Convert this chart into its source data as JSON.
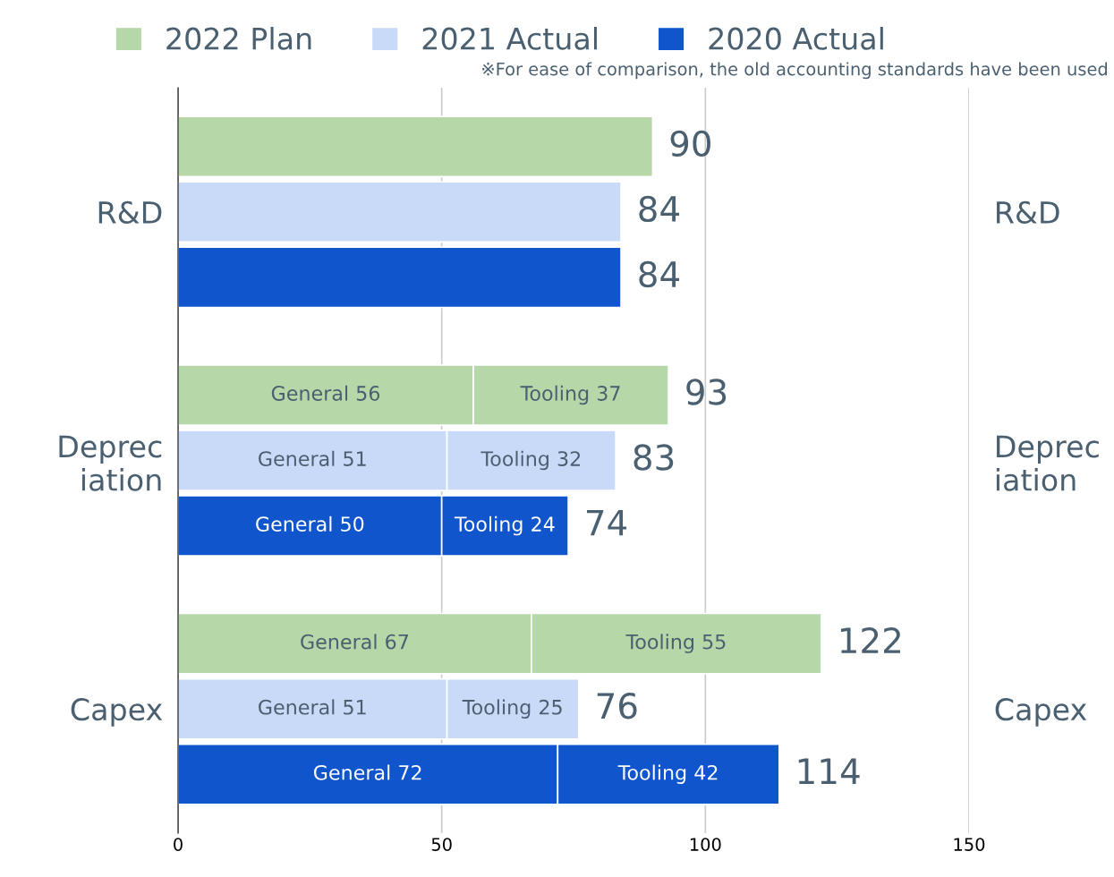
{
  "chart_data": {
    "type": "bar",
    "orientation": "horizontal",
    "stacked": true,
    "categories": [
      null,
      "R&D",
      null,
      null,
      "Deprec\niation",
      null,
      null,
      "Capex",
      null
    ],
    "series": [
      {
        "name": "2022 Plan",
        "color": "#b6d7a8",
        "values": [
          90,
          null,
          null,
          56,
          null,
          null,
          67,
          null,
          null
        ],
        "value_labels": [
          null,
          null,
          null,
          "General 56",
          null,
          null,
          "General 67",
          null,
          null
        ]
      },
      {
        "color": "#b6d7a8",
        "values": [
          null,
          null,
          null,
          37,
          null,
          null,
          55,
          null,
          null
        ],
        "value_labels": [
          null,
          null,
          null,
          "Tooling 37",
          null,
          null,
          "Tooling 55",
          null,
          null
        ]
      },
      {
        "name": "2021 Actual",
        "color": "#c9daf8",
        "values": [
          null,
          84,
          null,
          null,
          51,
          null,
          null,
          51,
          null
        ],
        "value_labels": [
          null,
          null,
          null,
          null,
          "General 51",
          null,
          null,
          "General 51",
          null
        ]
      },
      {
        "color": "#c9daf8",
        "values": [
          null,
          null,
          null,
          null,
          32,
          null,
          null,
          25,
          null
        ],
        "value_labels": [
          null,
          null,
          null,
          null,
          "Tooling 32",
          null,
          null,
          "Tooling 25",
          null
        ]
      },
      {
        "name": "2020 Actual",
        "color": "#1155cc",
        "values": [
          null,
          null,
          84,
          null,
          null,
          50,
          null,
          null,
          72
        ],
        "value_labels": [
          null,
          null,
          null,
          null,
          null,
          "General 50",
          null,
          null,
          "General 72"
        ]
      },
      {
        "color": "#1155cc",
        "values": [
          null,
          null,
          null,
          null,
          null,
          24,
          null,
          null,
          42
        ],
        "value_labels": [
          null,
          null,
          null,
          null,
          null,
          "Tooling 24",
          null,
          null,
          "Tooling 42"
        ]
      }
    ],
    "totals": [
      "90",
      "84",
      "84",
      "93",
      "83",
      "74",
      "122",
      "76",
      "114"
    ],
    "xlim": [
      0,
      150
    ],
    "xticks": [
      0,
      50,
      100,
      150
    ],
    "grid": "x",
    "legend": "top",
    "annotations": [
      "※For ease of comparison, the old accounting standards have been used"
    ]
  }
}
